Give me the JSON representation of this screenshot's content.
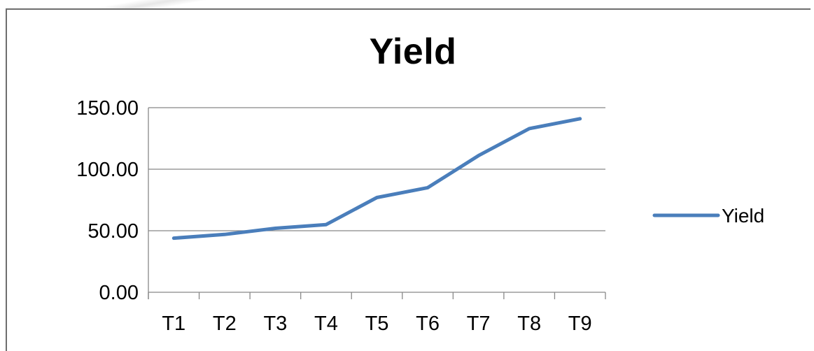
{
  "chart_data": {
    "type": "line",
    "title": "Yield",
    "xlabel": "",
    "ylabel": "",
    "categories": [
      "T1",
      "T2",
      "T3",
      "T4",
      "T5",
      "T6",
      "T7",
      "T8",
      "T9"
    ],
    "series": [
      {
        "name": "Yield",
        "values": [
          44,
          47,
          52,
          55,
          77,
          85,
          111,
          133,
          141
        ],
        "color": "#4a7ebb"
      }
    ],
    "ylim": [
      0,
      150
    ],
    "yticks": [
      "0.00",
      "50.00",
      "100.00",
      "150.00"
    ],
    "grid": true,
    "legend_position": "right"
  }
}
